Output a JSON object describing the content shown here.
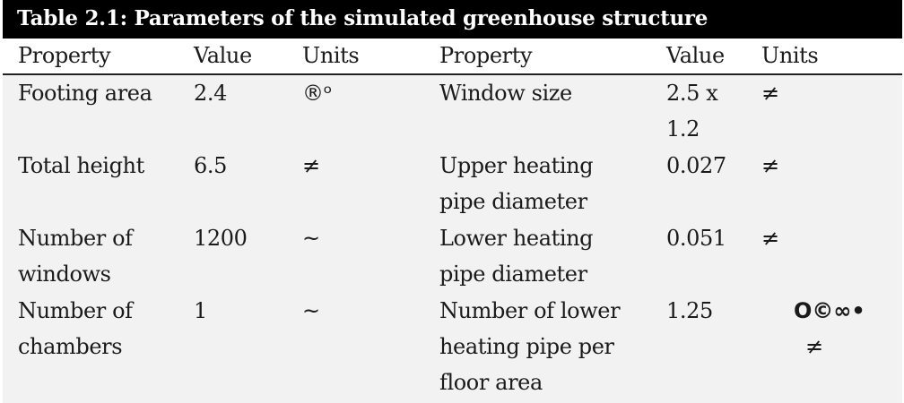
{
  "table": {
    "title": "Table 2.1: Parameters of the simulated greenhouse structure",
    "headers": {
      "property_left": "Property",
      "value_left": "Value",
      "units_left": "Units",
      "property_right": "Property",
      "value_right": "Value",
      "units_right": "Units"
    },
    "rows": [
      {
        "left_property_line1": "Footing area",
        "left_property_line2": "",
        "left_value": "2.4",
        "left_units": "®ᵒ",
        "right_property_line1": "Window size",
        "right_property_line2": "",
        "right_property_line3": "",
        "right_value_line1": "2.5 x",
        "right_value_line2": "1.2",
        "right_units": "≠"
      },
      {
        "left_property_line1": "Total height",
        "left_property_line2": "",
        "left_value": "6.5",
        "left_units": "≠",
        "right_property_line1": "Upper heating",
        "right_property_line2": "pipe diameter",
        "right_property_line3": "",
        "right_value_line1": "0.027",
        "right_value_line2": "",
        "right_units": "≠"
      },
      {
        "left_property_line1": "Number of",
        "left_property_line2": "windows",
        "left_value": "1200",
        "left_units": "~",
        "right_property_line1": "Lower heating",
        "right_property_line2": "pipe diameter",
        "right_property_line3": "",
        "right_value_line1": "0.051",
        "right_value_line2": "",
        "right_units": "≠"
      },
      {
        "left_property_line1": "Number of",
        "left_property_line2": "chambers",
        "left_value": "1",
        "left_units": "~",
        "right_property_line1": "Number of lower",
        "right_property_line2": "heating pipe per",
        "right_property_line3": "floor area",
        "right_value_line1": "1.25",
        "right_value_line2": "",
        "right_units": "O©∞•",
        "right_units_line2": "≠"
      }
    ]
  }
}
